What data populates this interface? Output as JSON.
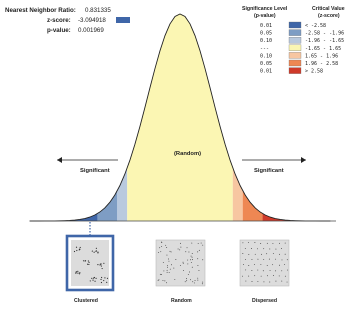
{
  "stats": {
    "ratio_label": "Nearest Neighbor Ratio:",
    "ratio_value": "0.831335",
    "zscore_label": "z-score:",
    "zscore_value": "-3.094918",
    "pvalue_label": "p-value:",
    "pvalue_value": "0.001969"
  },
  "legend": {
    "sig_header": [
      "Significance Level",
      "(p-value)"
    ],
    "crit_header": [
      "Critical Value",
      "(z-score)"
    ],
    "rows": [
      {
        "p": "0.01",
        "z": "< -2.58",
        "color": "#3f66a8"
      },
      {
        "p": "0.05",
        "z": "-2.58 - -1.96",
        "color": "#7e9dc4"
      },
      {
        "p": "0.10",
        "z": "-1.96 - -1.65",
        "color": "#b9c9de"
      },
      {
        "p": "---",
        "z": "-1.65 - 1.65",
        "color": "#fbf6b3"
      },
      {
        "p": "0.10",
        "z": "1.65 - 1.96",
        "color": "#f7c6a1"
      },
      {
        "p": "0.05",
        "z": "1.96 - 2.58",
        "color": "#ee8753"
      },
      {
        "p": "0.01",
        "z": "> 2.58",
        "color": "#cf3a2a"
      }
    ]
  },
  "curve": {
    "center_label": "(Random)",
    "left_label": "Significant",
    "right_label": "Significant"
  },
  "result_marker_color": "#3f66a8",
  "panels": {
    "clustered": "Clustered",
    "random": "Random",
    "dispersed": "Dispersed"
  }
}
